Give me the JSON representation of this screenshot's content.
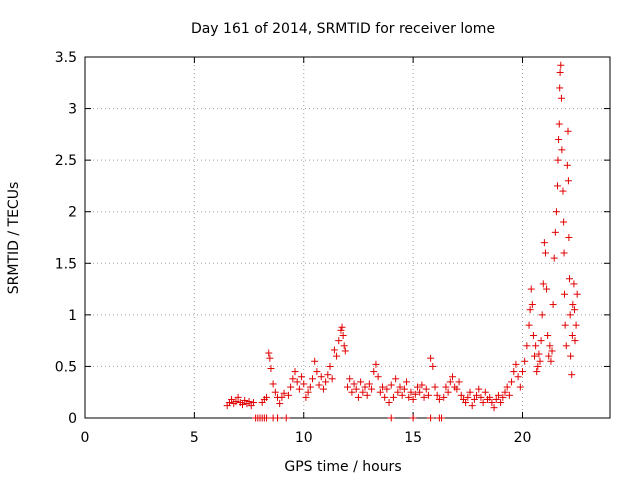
{
  "chart_data": {
    "type": "scatter",
    "title": "Day 161 of 2014, SRMTID for receiver lome",
    "xlabel": "GPS time / hours",
    "ylabel": "SRMTID / TECUs",
    "xlim": [
      0,
      24
    ],
    "ylim": [
      0,
      3.5
    ],
    "x_ticks": [
      0,
      5,
      10,
      15,
      20
    ],
    "x_tick_labels": [
      "0",
      "5",
      "10",
      "15",
      "20"
    ],
    "y_ticks": [
      0,
      0.5,
      1,
      1.5,
      2,
      2.5,
      3,
      3.5
    ],
    "y_tick_labels": [
      "0",
      "0.5",
      "1",
      "1.5",
      "2",
      "2.5",
      "3",
      "3.5"
    ],
    "grid": true,
    "marker": "plus",
    "series_color": "#e00000",
    "points": [
      [
        6.5,
        0.12
      ],
      [
        6.6,
        0.15
      ],
      [
        6.7,
        0.18
      ],
      [
        6.8,
        0.14
      ],
      [
        6.9,
        0.16
      ],
      [
        7.0,
        0.2
      ],
      [
        7.1,
        0.15
      ],
      [
        7.2,
        0.13
      ],
      [
        7.3,
        0.17
      ],
      [
        7.4,
        0.14
      ],
      [
        7.5,
        0.16
      ],
      [
        7.6,
        0.12
      ],
      [
        7.7,
        0.15
      ],
      [
        7.8,
        0.0
      ],
      [
        7.9,
        0.0
      ],
      [
        8.0,
        0.0
      ],
      [
        8.1,
        0.0
      ],
      [
        8.2,
        0.0
      ],
      [
        8.3,
        0.0
      ],
      [
        8.6,
        0.0
      ],
      [
        8.8,
        0.0
      ],
      [
        9.2,
        0.0
      ],
      [
        8.1,
        0.15
      ],
      [
        8.2,
        0.18
      ],
      [
        8.3,
        0.2
      ],
      [
        8.4,
        0.63
      ],
      [
        8.45,
        0.58
      ],
      [
        8.5,
        0.48
      ],
      [
        8.6,
        0.33
      ],
      [
        8.7,
        0.25
      ],
      [
        8.8,
        0.2
      ],
      [
        8.9,
        0.14
      ],
      [
        9.0,
        0.2
      ],
      [
        9.1,
        0.24
      ],
      [
        9.3,
        0.22
      ],
      [
        9.4,
        0.3
      ],
      [
        9.5,
        0.38
      ],
      [
        9.6,
        0.45
      ],
      [
        9.7,
        0.35
      ],
      [
        9.8,
        0.28
      ],
      [
        9.9,
        0.4
      ],
      [
        10.0,
        0.33
      ],
      [
        10.1,
        0.2
      ],
      [
        10.2,
        0.25
      ],
      [
        10.3,
        0.3
      ],
      [
        10.4,
        0.38
      ],
      [
        10.5,
        0.55
      ],
      [
        10.6,
        0.45
      ],
      [
        10.7,
        0.32
      ],
      [
        10.8,
        0.4
      ],
      [
        10.9,
        0.28
      ],
      [
        11.0,
        0.35
      ],
      [
        11.1,
        0.42
      ],
      [
        11.2,
        0.5
      ],
      [
        11.3,
        0.38
      ],
      [
        11.4,
        0.66
      ],
      [
        11.5,
        0.6
      ],
      [
        11.6,
        0.75
      ],
      [
        11.7,
        0.85
      ],
      [
        11.75,
        0.88
      ],
      [
        11.8,
        0.8
      ],
      [
        11.85,
        0.7
      ],
      [
        11.9,
        0.65
      ],
      [
        12.0,
        0.3
      ],
      [
        12.1,
        0.38
      ],
      [
        12.2,
        0.25
      ],
      [
        12.3,
        0.33
      ],
      [
        12.4,
        0.28
      ],
      [
        12.5,
        0.2
      ],
      [
        12.6,
        0.35
      ],
      [
        12.7,
        0.25
      ],
      [
        12.8,
        0.3
      ],
      [
        12.9,
        0.22
      ],
      [
        13.0,
        0.33
      ],
      [
        13.1,
        0.28
      ],
      [
        13.2,
        0.45
      ],
      [
        13.3,
        0.52
      ],
      [
        13.4,
        0.4
      ],
      [
        13.5,
        0.25
      ],
      [
        13.6,
        0.3
      ],
      [
        13.7,
        0.2
      ],
      [
        13.8,
        0.28
      ],
      [
        13.9,
        0.15
      ],
      [
        14.0,
        0.0
      ],
      [
        14.0,
        0.32
      ],
      [
        14.1,
        0.2
      ],
      [
        14.2,
        0.38
      ],
      [
        14.3,
        0.25
      ],
      [
        14.4,
        0.3
      ],
      [
        14.5,
        0.22
      ],
      [
        14.6,
        0.28
      ],
      [
        14.7,
        0.35
      ],
      [
        14.8,
        0.2
      ],
      [
        14.9,
        0.25
      ],
      [
        15.0,
        0.0
      ],
      [
        15.0,
        0.18
      ],
      [
        15.1,
        0.23
      ],
      [
        15.2,
        0.3
      ],
      [
        15.3,
        0.25
      ],
      [
        15.4,
        0.32
      ],
      [
        15.5,
        0.2
      ],
      [
        15.6,
        0.28
      ],
      [
        15.7,
        0.22
      ],
      [
        15.8,
        0.0
      ],
      [
        15.8,
        0.58
      ],
      [
        15.9,
        0.5
      ],
      [
        16.0,
        0.3
      ],
      [
        16.1,
        0.22
      ],
      [
        16.2,
        0.0
      ],
      [
        16.2,
        0.18
      ],
      [
        16.3,
        0.0
      ],
      [
        16.4,
        0.2
      ],
      [
        16.5,
        0.3
      ],
      [
        16.6,
        0.25
      ],
      [
        16.7,
        0.35
      ],
      [
        16.8,
        0.4
      ],
      [
        16.9,
        0.3
      ],
      [
        17.0,
        0.28
      ],
      [
        17.1,
        0.35
      ],
      [
        17.2,
        0.22
      ],
      [
        17.3,
        0.18
      ],
      [
        17.4,
        0.15
      ],
      [
        17.5,
        0.2
      ],
      [
        17.6,
        0.25
      ],
      [
        17.7,
        0.12
      ],
      [
        17.8,
        0.18
      ],
      [
        17.9,
        0.22
      ],
      [
        18.0,
        0.28
      ],
      [
        18.1,
        0.2
      ],
      [
        18.2,
        0.15
      ],
      [
        18.3,
        0.25
      ],
      [
        18.4,
        0.18
      ],
      [
        18.5,
        0.2
      ],
      [
        18.6,
        0.15
      ],
      [
        18.7,
        0.1
      ],
      [
        18.8,
        0.18
      ],
      [
        18.9,
        0.22
      ],
      [
        19.0,
        0.15
      ],
      [
        19.1,
        0.2
      ],
      [
        19.2,
        0.25
      ],
      [
        19.3,
        0.3
      ],
      [
        19.4,
        0.22
      ],
      [
        19.5,
        0.35
      ],
      [
        19.6,
        0.45
      ],
      [
        19.7,
        0.52
      ],
      [
        19.8,
        0.4
      ],
      [
        19.9,
        0.3
      ],
      [
        20.0,
        0.45
      ],
      [
        20.1,
        0.55
      ],
      [
        20.2,
        0.7
      ],
      [
        20.3,
        0.9
      ],
      [
        20.35,
        1.05
      ],
      [
        20.4,
        1.25
      ],
      [
        20.45,
        1.1
      ],
      [
        20.5,
        0.8
      ],
      [
        20.55,
        0.6
      ],
      [
        20.6,
        0.7
      ],
      [
        20.65,
        0.45
      ],
      [
        20.7,
        0.5
      ],
      [
        20.75,
        0.62
      ],
      [
        20.8,
        0.55
      ],
      [
        20.85,
        0.75
      ],
      [
        20.9,
        1.0
      ],
      [
        20.95,
        1.3
      ],
      [
        21.0,
        1.7
      ],
      [
        21.05,
        1.6
      ],
      [
        21.1,
        1.25
      ],
      [
        21.15,
        0.8
      ],
      [
        21.2,
        0.6
      ],
      [
        21.25,
        0.7
      ],
      [
        21.3,
        0.55
      ],
      [
        21.35,
        0.65
      ],
      [
        21.4,
        1.1
      ],
      [
        21.45,
        1.55
      ],
      [
        21.5,
        1.8
      ],
      [
        21.55,
        2.0
      ],
      [
        21.6,
        2.25
      ],
      [
        21.62,
        2.5
      ],
      [
        21.65,
        2.7
      ],
      [
        21.68,
        2.85
      ],
      [
        21.7,
        3.2
      ],
      [
        21.72,
        3.35
      ],
      [
        21.75,
        3.42
      ],
      [
        21.78,
        3.1
      ],
      [
        21.8,
        2.6
      ],
      [
        21.85,
        2.2
      ],
      [
        21.88,
        1.9
      ],
      [
        21.9,
        1.6
      ],
      [
        21.92,
        1.2
      ],
      [
        21.95,
        0.9
      ],
      [
        22.0,
        0.7
      ],
      [
        22.05,
        2.45
      ],
      [
        22.08,
        2.78
      ],
      [
        22.1,
        2.3
      ],
      [
        22.12,
        1.75
      ],
      [
        22.15,
        1.35
      ],
      [
        22.18,
        1.0
      ],
      [
        22.2,
        0.6
      ],
      [
        22.25,
        0.42
      ],
      [
        22.28,
        0.8
      ],
      [
        22.3,
        1.1
      ],
      [
        22.35,
        1.3
      ],
      [
        22.38,
        1.05
      ],
      [
        22.4,
        0.75
      ],
      [
        22.45,
        0.9
      ],
      [
        22.5,
        1.2
      ]
    ]
  }
}
